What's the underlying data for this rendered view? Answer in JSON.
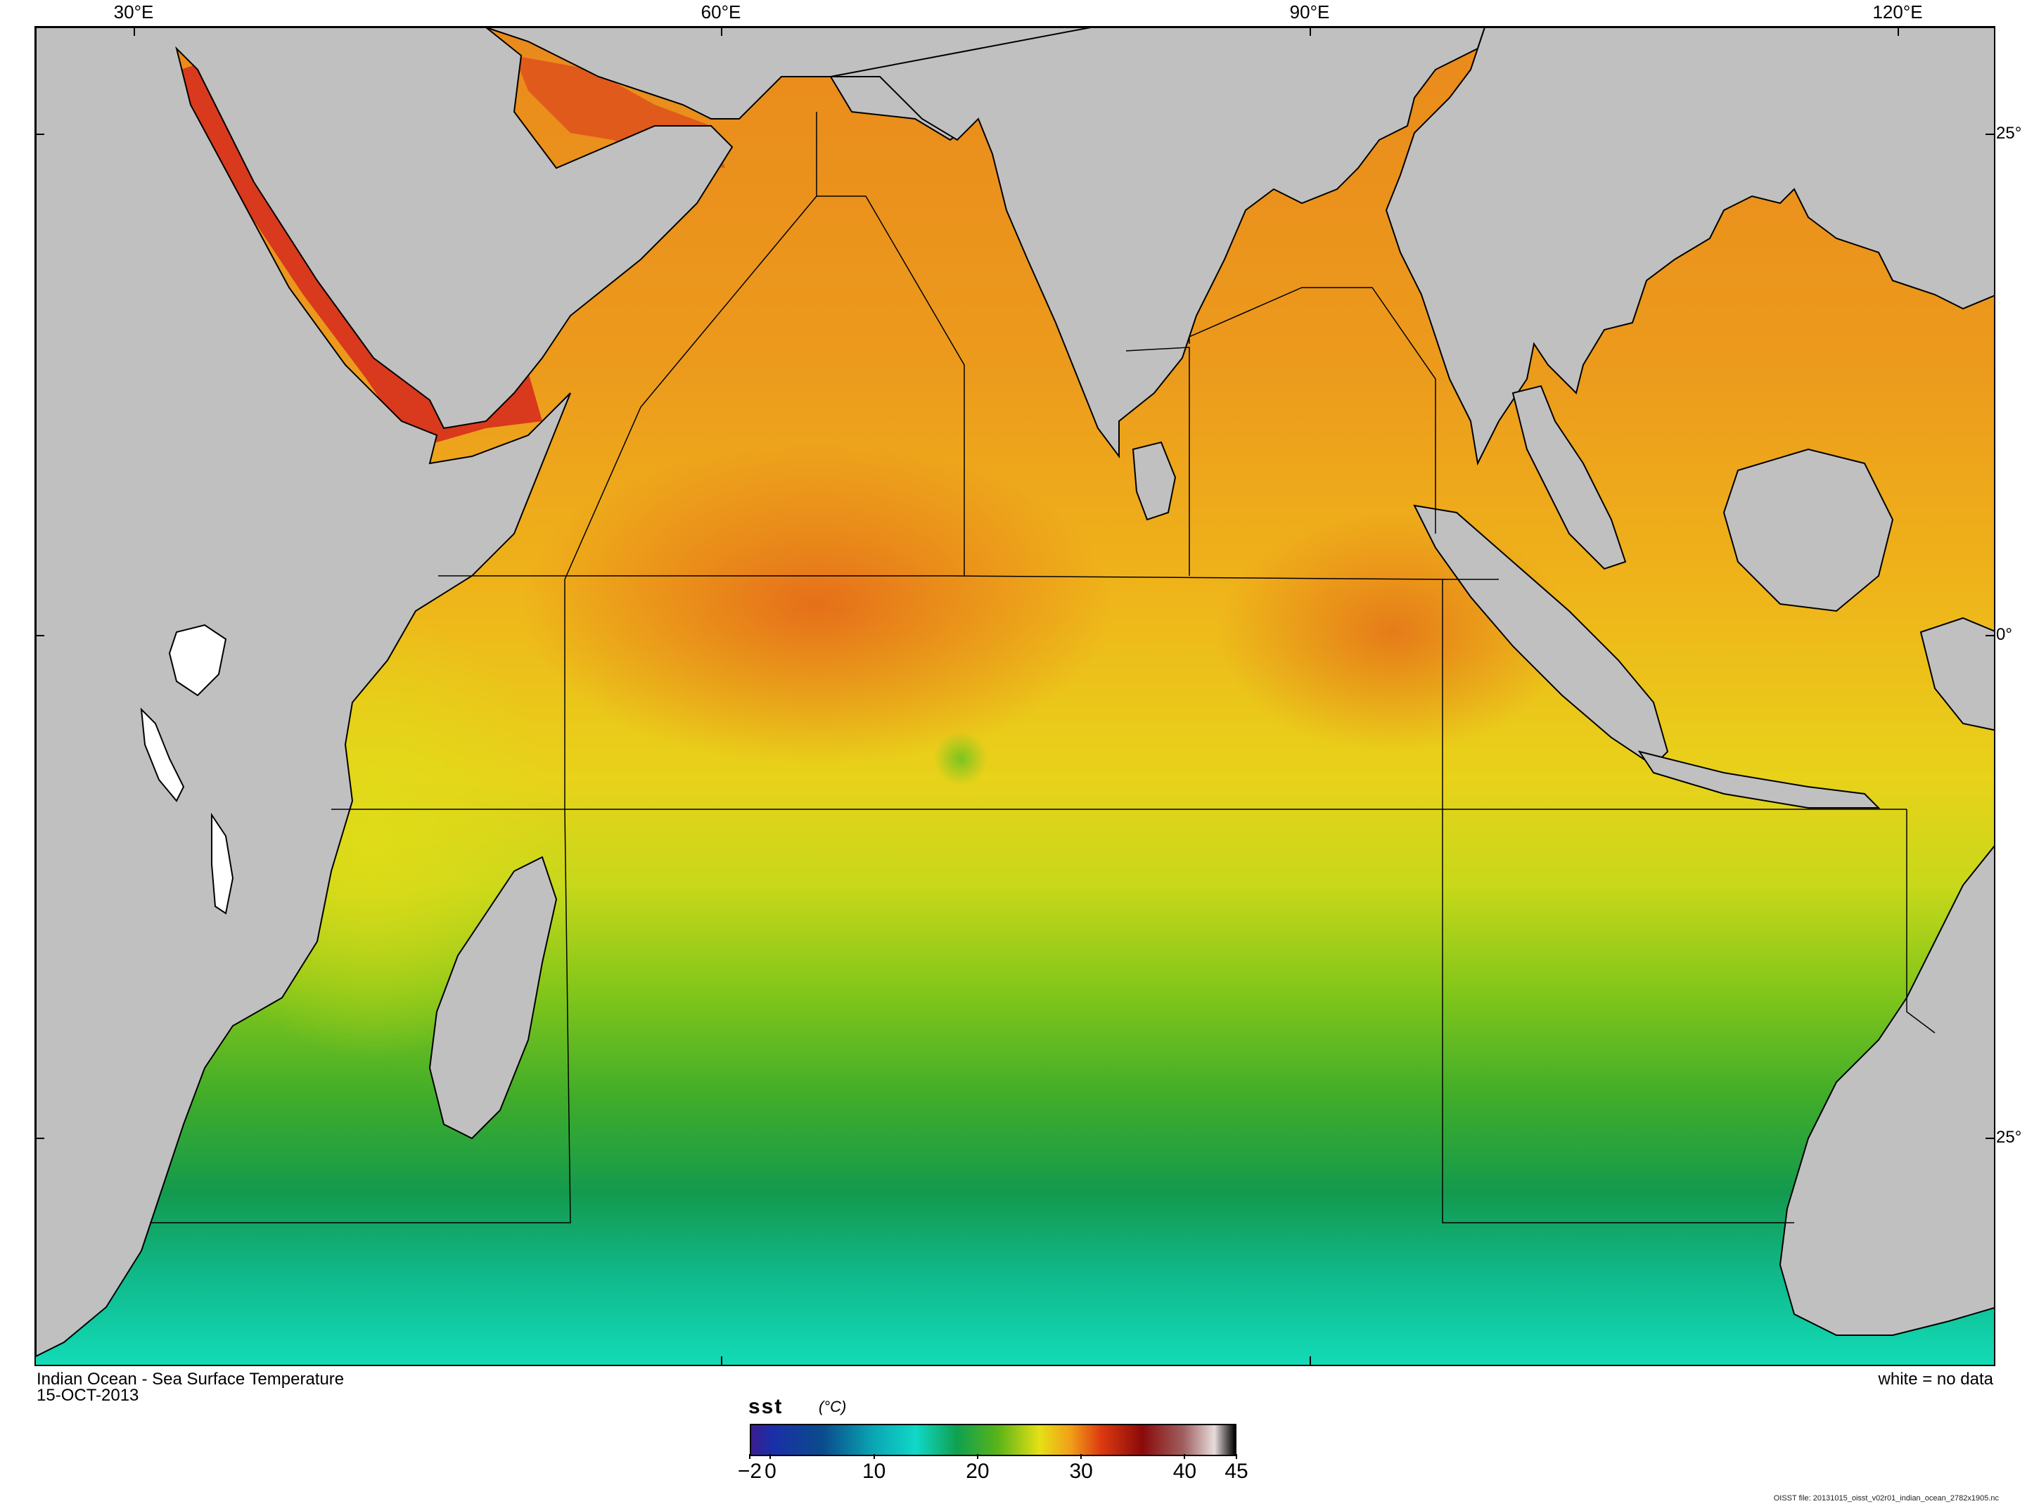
{
  "map": {
    "title": "Indian Ocean - Sea Surface Temperature",
    "date": "15-OCT-2013",
    "no_data_note": "white = no data",
    "file_note": "OISST file: 20131015_oisst_v02r01_indian_ocean_2782x1905.nc",
    "longitude_labels": [
      "30°E",
      "60°E",
      "90°E",
      "120°E"
    ],
    "latitude_labels": [
      "25°",
      "0°",
      "25°"
    ],
    "colors": {
      "land": "#c0c0c0",
      "warm_max": "#d9391c",
      "warm": "#ea7a1a",
      "mid": "#f0c81a",
      "cool": "#5cbf17",
      "cold": "#0f9a55",
      "coldest": "#12d6b0"
    }
  },
  "colorbar": {
    "variable": "sst",
    "unit": "(°C)",
    "tick_labels": [
      "−2",
      "0",
      "10",
      "20",
      "30",
      "40",
      "45"
    ],
    "tick_values": [
      -2,
      0,
      10,
      20,
      30,
      40,
      45
    ],
    "range": [
      -2,
      45
    ],
    "stops": [
      {
        "v": -2,
        "c": "#3a1d8f"
      },
      {
        "v": 0,
        "c": "#1b2ea8"
      },
      {
        "v": 5,
        "c": "#0a4c8c"
      },
      {
        "v": 10,
        "c": "#0aa8b4"
      },
      {
        "v": 14,
        "c": "#10d8c8"
      },
      {
        "v": 18,
        "c": "#0fa050"
      },
      {
        "v": 22,
        "c": "#5ab418"
      },
      {
        "v": 26,
        "c": "#e6e016"
      },
      {
        "v": 29,
        "c": "#f0a018"
      },
      {
        "v": 32,
        "c": "#dc3a10"
      },
      {
        "v": 36,
        "c": "#8a0a0a"
      },
      {
        "v": 40,
        "c": "#a06060"
      },
      {
        "v": 43,
        "c": "#e8dcdc"
      },
      {
        "v": 45,
        "c": "#000000"
      }
    ]
  }
}
